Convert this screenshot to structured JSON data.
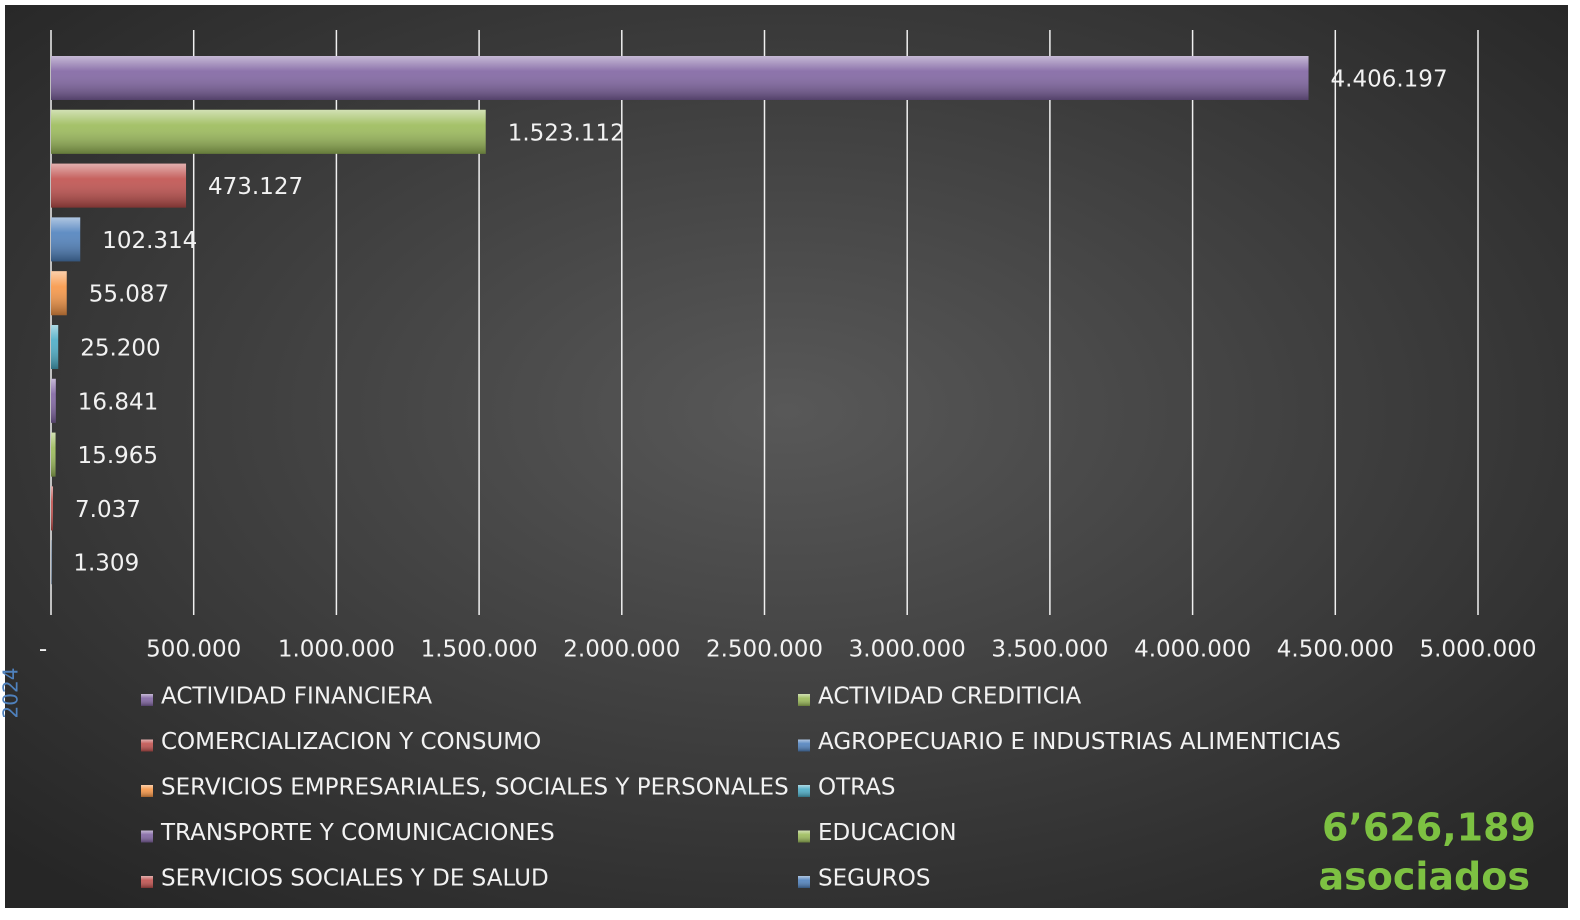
{
  "chart_data": {
    "type": "hbar",
    "categories": [
      "ACTIVIDAD FINANCIERA",
      "ACTIVIDAD CREDITICIA",
      "COMERCIALIZACION Y CONSUMO",
      "AGROPECUARIO E INDUSTRIAS ALIMENTICIAS",
      "SERVICIOS EMPRESARIALES, SOCIALES Y PERSONALES",
      "OTRAS",
      "TRANSPORTE Y COMUNICACIONES",
      "EDUCACION",
      "SERVICIOS SOCIALES Y DE SALUD",
      "SEGUROS"
    ],
    "values": [
      4406197,
      1523112,
      473127,
      102314,
      55087,
      25200,
      16841,
      15965,
      7037,
      1309
    ],
    "value_labels": [
      "4.406.197",
      "1.523.112",
      "473.127",
      "102.314",
      "55.087",
      "25.200",
      "16.841",
      "15.965",
      "7.037",
      "1.309"
    ],
    "colors": [
      "#8064a2",
      "#9bbb59",
      "#c0504d",
      "#4f81bd",
      "#f79646",
      "#4bacc6",
      "#8064a2",
      "#9bbb59",
      "#c0504d",
      "#4f81bd"
    ],
    "xlim": [
      0,
      5000000
    ],
    "xticks": [
      {
        "value": 0,
        "label": "-"
      },
      {
        "value": 500000,
        "label": "500.000"
      },
      {
        "value": 1000000,
        "label": "1.000.000"
      },
      {
        "value": 1500000,
        "label": "1.500.000"
      },
      {
        "value": 2000000,
        "label": "2.000.000"
      },
      {
        "value": 2500000,
        "label": "2.500.000"
      },
      {
        "value": 3000000,
        "label": "3.000.000"
      },
      {
        "value": 3500000,
        "label": "3.500.000"
      },
      {
        "value": 4000000,
        "label": "4.000.000"
      },
      {
        "value": 4500000,
        "label": "4.500.000"
      },
      {
        "value": 5000000,
        "label": "5.000.000"
      }
    ],
    "grid": true,
    "side_label": "2024",
    "total": "6’626,189",
    "total_unit": "asociados"
  }
}
